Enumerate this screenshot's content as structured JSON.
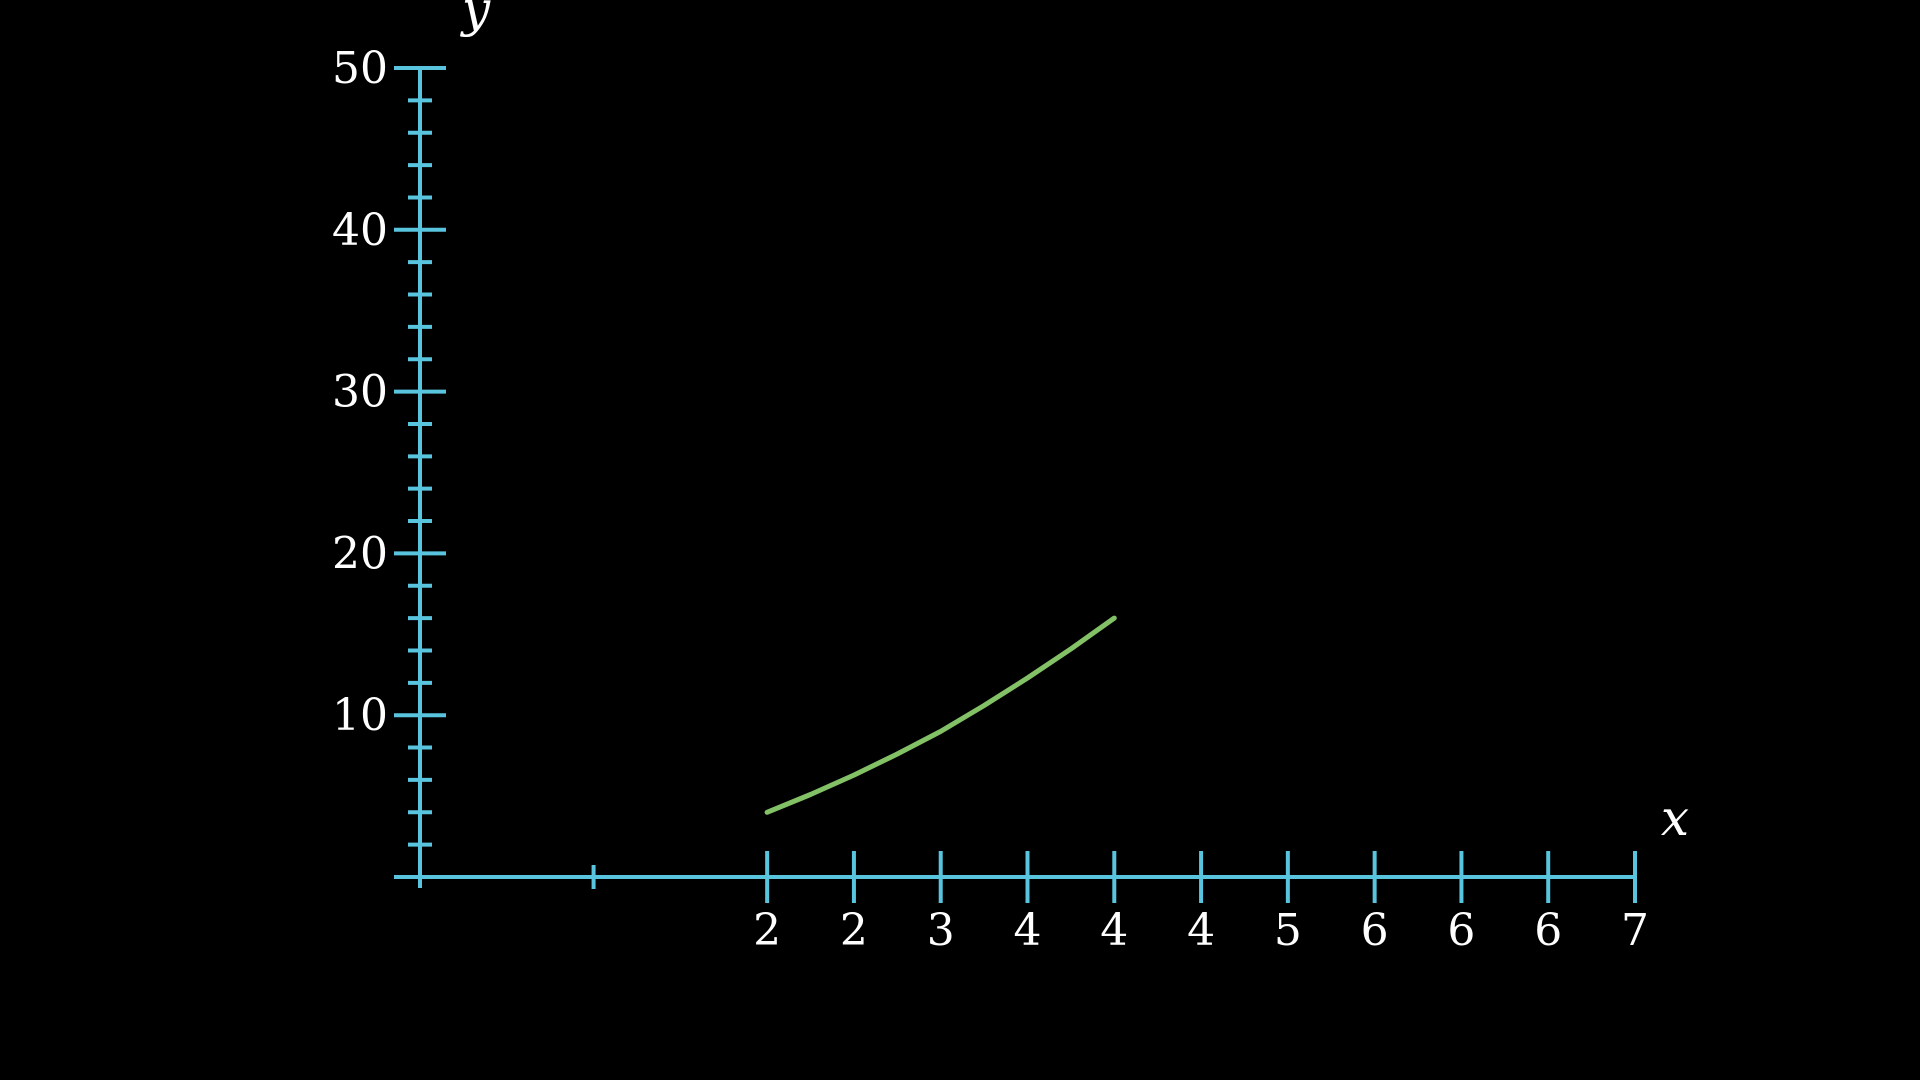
{
  "colors": {
    "background": "#000000",
    "axis": "#58c4dd",
    "curve": "#83c167",
    "text": "#ffffff"
  },
  "chart_data": {
    "type": "line",
    "title": "",
    "xlabel": "x",
    "ylabel": "y",
    "xlim": [
      0,
      7
    ],
    "ylim": [
      0,
      50
    ],
    "grid": false,
    "legend": "none",
    "x_tick_labels": [
      "2",
      "2",
      "3",
      "4",
      "4",
      "4",
      "5",
      "6",
      "6",
      "6",
      "7"
    ],
    "y_tick_labels": [
      "10",
      "20",
      "30",
      "40",
      "50"
    ],
    "series": [
      {
        "x": [
          2.0,
          2.25,
          2.5,
          2.75,
          3.0,
          3.25,
          3.5,
          3.75,
          4.0
        ],
        "y": [
          4.0,
          5.1,
          6.3,
          7.6,
          9.0,
          10.6,
          12.3,
          14.1,
          16.0
        ]
      }
    ]
  }
}
